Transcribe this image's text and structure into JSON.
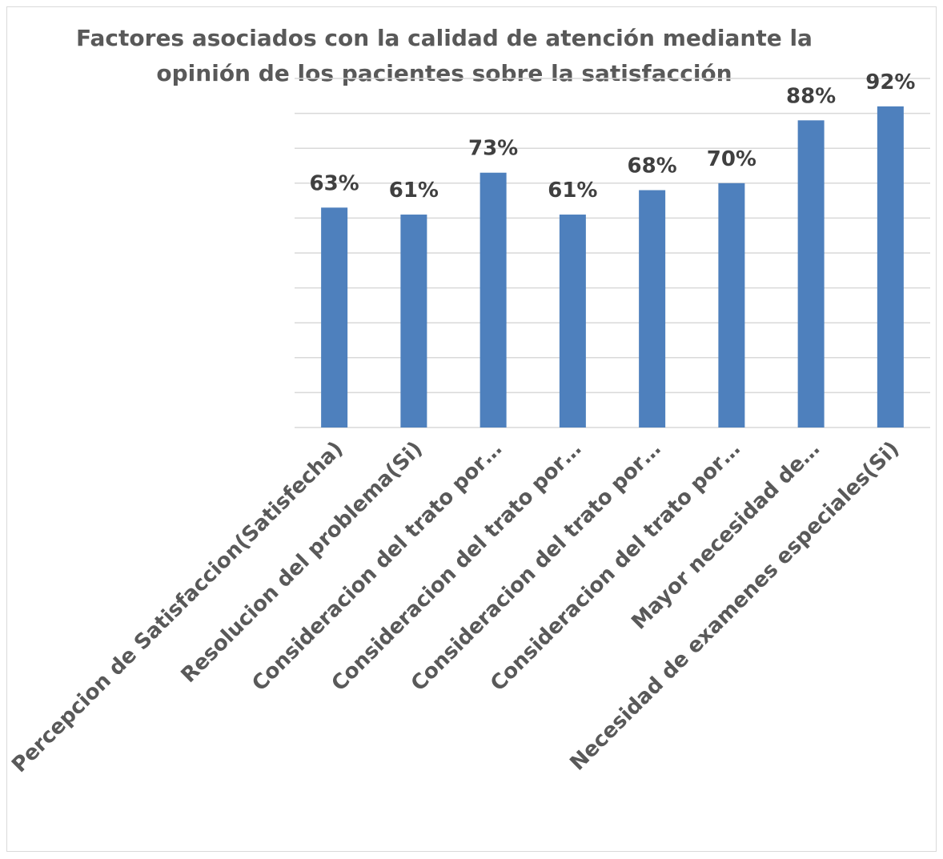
{
  "chart_data": {
    "type": "bar",
    "title": "Factores asociados con la calidad de atención mediante la opinión de los pacientes sobre la satisfacción",
    "categories": [
      "Percepcion de Satisfaccion(Satisfecha)",
      "Resolucion del problema(Si)",
      "Consideracion del trato por…",
      "Consideracion del trato por…",
      "Consideracion del trato por…",
      "Consideracion del trato por…",
      "Mayor necesidad de…",
      "Necesidad de examenes especiales(Si)"
    ],
    "values": [
      63,
      61,
      73,
      61,
      68,
      70,
      88,
      92
    ],
    "data_labels": [
      "63%",
      "61%",
      "73%",
      "61%",
      "68%",
      "70%",
      "88%",
      "92%"
    ],
    "ylim": [
      0,
      100
    ],
    "grid": true,
    "legend": "none",
    "bar_color": "#4e80bd"
  }
}
